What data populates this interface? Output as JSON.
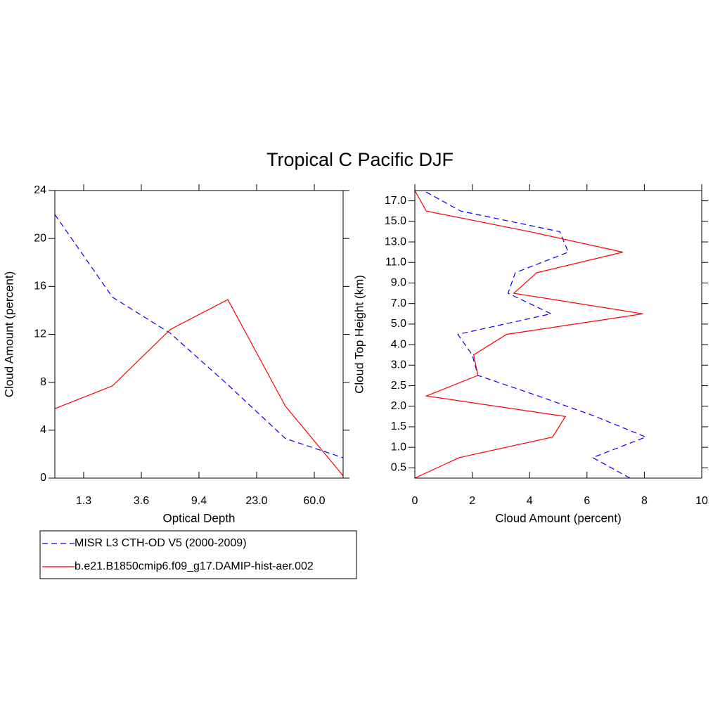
{
  "title": "Tropical C Pacific DJF",
  "chart_data": [
    {
      "type": "line",
      "x_label": "Optical Depth",
      "y_label": "Cloud Amount (percent)",
      "x": [
        0,
        1,
        2,
        3,
        4,
        5
      ],
      "xlim": [
        0,
        5
      ],
      "xticks": [
        {
          "value": 0.5,
          "label": "1.3"
        },
        {
          "value": 1.5,
          "label": "3.6"
        },
        {
          "value": 2.5,
          "label": "9.4"
        },
        {
          "value": 3.5,
          "label": "23.0"
        },
        {
          "value": 4.5,
          "label": "60.0"
        }
      ],
      "ylim": [
        0,
        24
      ],
      "yticks": [
        0,
        4,
        8,
        12,
        16,
        20,
        24
      ],
      "series": [
        {
          "name": "MISR L3 CTH-OD V5 (2000-2009)",
          "color": "#0000ff",
          "dashed": true,
          "values": [
            22.0,
            15.1,
            12.1,
            7.8,
            3.3,
            1.7
          ]
        },
        {
          "name": "b.e21.B1850cmip6.f09_g17.DAMIP-hist-aer.002",
          "color": "#ff0000",
          "dashed": false,
          "values": [
            5.8,
            7.7,
            12.4,
            14.9,
            6.0,
            0.2
          ]
        }
      ]
    },
    {
      "type": "line",
      "orientation": "horizontal",
      "x_label": "Cloud Amount (percent)",
      "y_label": "Cloud Top Height (km)",
      "y": [
        0,
        1,
        2,
        3,
        4,
        5,
        6,
        7,
        8,
        9,
        10,
        11,
        12,
        13,
        14
      ],
      "ylim": [
        0,
        14
      ],
      "yticks": [
        {
          "value": 0.5,
          "label": "0.5"
        },
        {
          "value": 1.5,
          "label": "1.0"
        },
        {
          "value": 2.5,
          "label": "1.5"
        },
        {
          "value": 3.5,
          "label": "2.0"
        },
        {
          "value": 4.5,
          "label": "2.5"
        },
        {
          "value": 5.5,
          "label": "3.0"
        },
        {
          "value": 6.5,
          "label": "4.0"
        },
        {
          "value": 7.5,
          "label": "5.0"
        },
        {
          "value": 8.5,
          "label": "7.0"
        },
        {
          "value": 9.5,
          "label": "9.0"
        },
        {
          "value": 10.5,
          "label": "11.0"
        },
        {
          "value": 11.5,
          "label": "13.0"
        },
        {
          "value": 12.5,
          "label": "15.0"
        },
        {
          "value": 13.5,
          "label": "17.0"
        }
      ],
      "xlim": [
        0,
        10
      ],
      "xticks": [
        0,
        2,
        4,
        6,
        8,
        10
      ],
      "series": [
        {
          "color": "#0000ff",
          "dashed": true,
          "values": [
            7.5,
            6.2,
            8.05,
            6.3,
            4.3,
            2.2,
            2.0,
            1.5,
            4.75,
            3.25,
            3.5,
            5.35,
            5.05,
            1.6,
            0.3
          ]
        },
        {
          "color": "#ff0000",
          "dashed": false,
          "values": [
            0.0,
            1.55,
            4.8,
            5.25,
            0.4,
            2.2,
            2.05,
            3.2,
            7.95,
            3.45,
            4.25,
            7.25,
            4.0,
            0.4,
            0.0
          ]
        }
      ]
    }
  ]
}
